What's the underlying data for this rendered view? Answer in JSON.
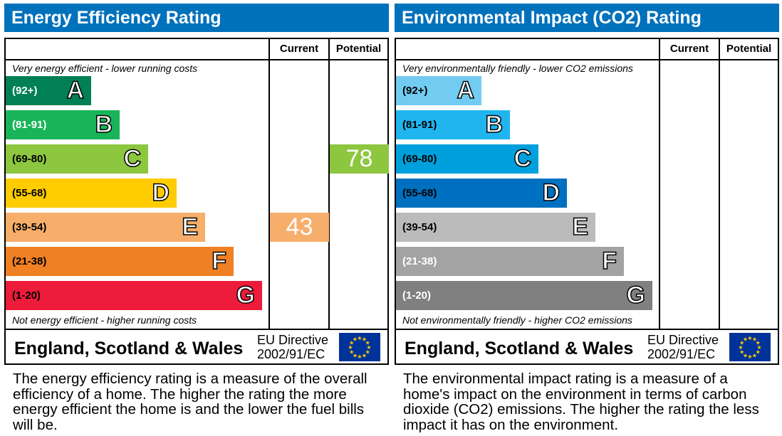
{
  "chart_data": [
    {
      "type": "bar",
      "title": "Energy Efficiency Rating",
      "columns": {
        "current": "Current",
        "potential": "Potential"
      },
      "top_note": "Very energy efficient - lower running costs",
      "bottom_note": "Not energy efficient - higher running costs",
      "bands": [
        {
          "letter": "A",
          "range": "(92+)",
          "color": "#008054",
          "text_color": "#ffffff"
        },
        {
          "letter": "B",
          "range": "(81-91)",
          "color": "#19b459",
          "text_color": "#ffffff"
        },
        {
          "letter": "C",
          "range": "(69-80)",
          "color": "#8dc63f",
          "text_color": "#000000"
        },
        {
          "letter": "D",
          "range": "(55-68)",
          "color": "#ffcc00",
          "text_color": "#000000"
        },
        {
          "letter": "E",
          "range": "(39-54)",
          "color": "#f7ae6a",
          "text_color": "#000000"
        },
        {
          "letter": "F",
          "range": "(21-38)",
          "color": "#f08024",
          "text_color": "#000000"
        },
        {
          "letter": "G",
          "range": "(1-20)",
          "color": "#ec1c3a",
          "text_color": "#000000"
        }
      ],
      "current": {
        "value": "43",
        "band": "E"
      },
      "potential": {
        "value": "78",
        "band": "C"
      },
      "country": "England, Scotland & Wales",
      "directive_line1": "EU Directive",
      "directive_line2": "2002/91/EC",
      "description": "The energy efficiency rating is a measure of the overall efficiency of a home. The higher the rating the more energy efficient the home is and the lower the fuel bills will be."
    },
    {
      "type": "bar",
      "title": "Environmental Impact (CO2) Rating",
      "columns": {
        "current": "Current",
        "potential": "Potential"
      },
      "top_note": "Very environmentally friendly - lower CO2 emissions",
      "bottom_note": "Not environmentally friendly - higher CO2 emissions",
      "bands": [
        {
          "letter": "A",
          "range": "(92+)",
          "color": "#72cbf0",
          "text_color": "#000000"
        },
        {
          "letter": "B",
          "range": "(81-91)",
          "color": "#20b5ef",
          "text_color": "#000000"
        },
        {
          "letter": "C",
          "range": "(69-80)",
          "color": "#00a0dc",
          "text_color": "#000000"
        },
        {
          "letter": "D",
          "range": "(55-68)",
          "color": "#0070c0",
          "text_color": "#000000"
        },
        {
          "letter": "E",
          "range": "(39-54)",
          "color": "#bbbbbb",
          "text_color": "#000000"
        },
        {
          "letter": "F",
          "range": "(21-38)",
          "color": "#a3a3a3",
          "text_color": "#ffffff"
        },
        {
          "letter": "G",
          "range": "(1-20)",
          "color": "#808080",
          "text_color": "#ffffff"
        }
      ],
      "current": null,
      "potential": null,
      "country": "England, Scotland & Wales",
      "directive_line1": "EU Directive",
      "directive_line2": "2002/91/EC",
      "description": "The environmental impact rating is a measure of a home's impact on the environment in terms of carbon dioxide (CO2) emissions. The higher the rating the less impact it has on the environment."
    }
  ]
}
